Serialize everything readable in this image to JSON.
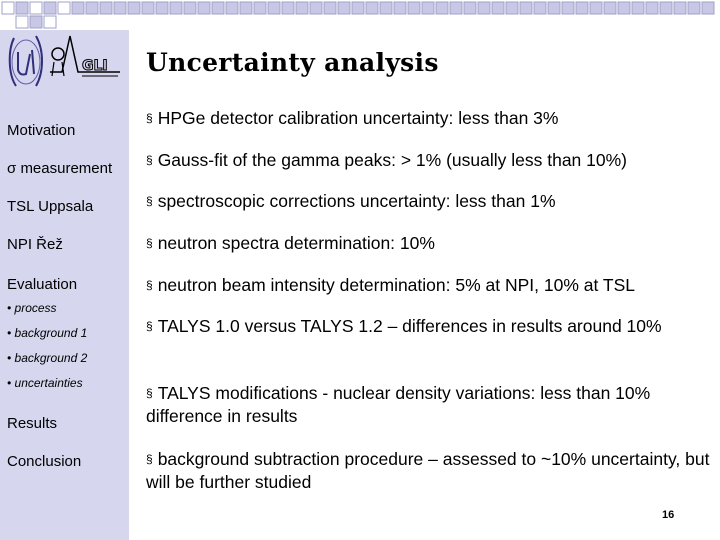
{
  "slide": {
    "title": "Uncertainty analysis",
    "page_number": "16",
    "bullet_marker": "§"
  },
  "sidebar": {
    "items": [
      {
        "label": "Motivation"
      },
      {
        "label": "measurement",
        "prefix": "σ"
      },
      {
        "label": "TSL Uppsala"
      },
      {
        "label": "NPI Řež"
      },
      {
        "label": "Evaluation"
      },
      {
        "label": "• process"
      },
      {
        "label": "• background 1"
      },
      {
        "label": "• background 2"
      },
      {
        "label": "• uncertainties"
      },
      {
        "label": "Results"
      },
      {
        "label": "Conclusion"
      }
    ]
  },
  "bullets": [
    {
      "text": "HPGe detector calibration uncertainty: less than 3%"
    },
    {
      "text": "Gauss-fit of the gamma peaks: > 1% (usually less than 10%)"
    },
    {
      "text": "spectroscopic corrections uncertainty: less than 1%"
    },
    {
      "text": "neutron spectra determination: 10%"
    },
    {
      "text": "neutron beam intensity determination: 5% at NPI, 10% at TSL"
    },
    {
      "text": "TALYS 1.0 versus TALYS 1.2 – differences in results around 10%"
    },
    {
      "text": "TALYS modifications - nuclear density variations: less than 10% difference in results"
    },
    {
      "text": "background subtraction procedure – assessed to ~10% uncertainty, but will be further studied"
    }
  ],
  "colors": {
    "sidebar": "#d6d6ee",
    "grid_fill": "#c8c8e6",
    "grid_border": "#a0a0c8"
  },
  "logos": {
    "left": "ujf-logo",
    "right": "gli-physics-logo"
  }
}
